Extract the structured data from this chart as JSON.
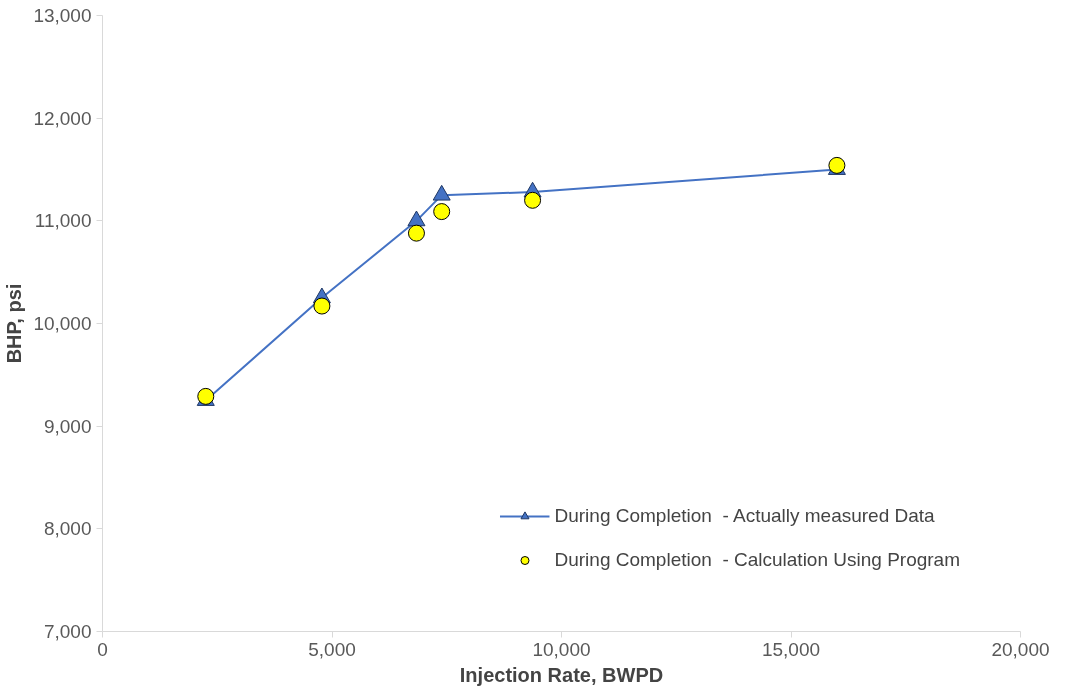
{
  "chart_data": {
    "type": "line",
    "xlabel": "Injection Rate, BWPD",
    "ylabel": "BHP, psi",
    "xlim": [
      0,
      20000
    ],
    "xticks": [
      {
        "value": 0,
        "label": "0"
      },
      {
        "value": 5000,
        "label": "5,000"
      },
      {
        "value": 10000,
        "label": "10,000"
      },
      {
        "value": 15000,
        "label": "15,000"
      },
      {
        "value": 20000,
        "label": "20,000"
      }
    ],
    "ylim": [
      7000,
      13000
    ],
    "yticks": [
      {
        "value": 7000,
        "label": "7,000"
      },
      {
        "value": 8000,
        "label": "8,000"
      },
      {
        "value": 9000,
        "label": "9,000"
      },
      {
        "value": 10000,
        "label": "10,000"
      },
      {
        "value": 11000,
        "label": "11,000"
      },
      {
        "value": 12000,
        "label": "12,000"
      },
      {
        "value": 13000,
        "label": "13,000"
      }
    ],
    "grid": false,
    "legend": "bottom right",
    "series": [
      {
        "name": "During Completion  - Actually measured Data",
        "marker": "triangle",
        "color": "#4472c4",
        "x": [
          2250,
          4780,
          6840,
          7390,
          9370,
          16000
        ],
        "values": [
          9250,
          10250,
          11000,
          11250,
          11280,
          11500
        ]
      },
      {
        "name": "During Completion  - Calculation Using Program",
        "type": "scatter",
        "marker": "circle",
        "color": "#ffff00",
        "x": [
          2250,
          4780,
          6840,
          7390,
          9370,
          16000
        ],
        "values": [
          9290,
          10170,
          10880,
          11090,
          11200,
          11540
        ]
      }
    ]
  }
}
